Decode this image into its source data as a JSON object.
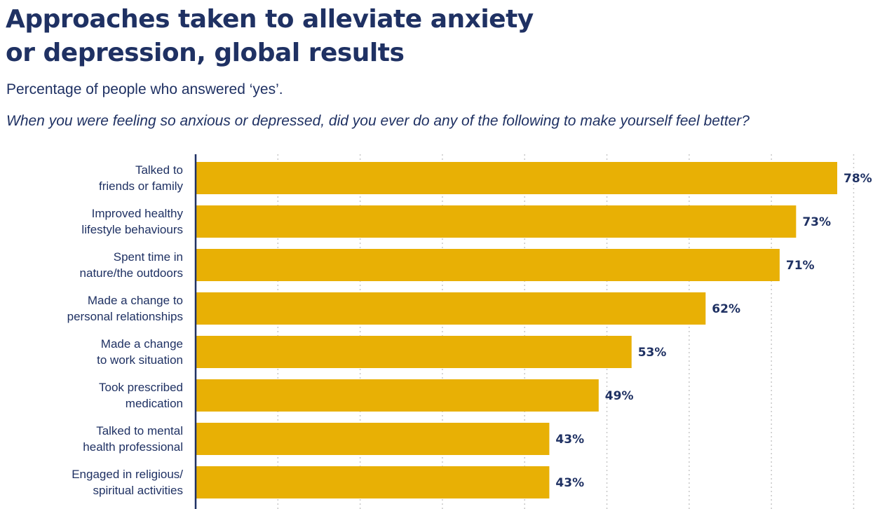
{
  "header": {
    "title_line1": "Approaches taken to alleviate anxiety",
    "title_line2": "or depression, global results",
    "subtitle": "Percentage of people who answered ‘yes’.",
    "question": "When you were feeling so anxious or depressed, did you ever do any of the following to make yourself feel better?"
  },
  "colors": {
    "bar": "#e8b005",
    "text": "#1f3163",
    "axis": "#1f3163",
    "grid": "#c8c8c8"
  },
  "chart_data": {
    "type": "bar",
    "orientation": "horizontal",
    "categories": [
      [
        "Talked to",
        "friends or family"
      ],
      [
        "Improved healthy",
        "lifestyle behaviours"
      ],
      [
        "Spent time in",
        "nature/the outdoors"
      ],
      [
        "Made a change to",
        "personal relationships"
      ],
      [
        "Made a change",
        "to work situation"
      ],
      [
        "Took prescribed",
        "medication"
      ],
      [
        "Talked to mental",
        "health professional"
      ],
      [
        "Engaged in religious/",
        "spiritual activities"
      ]
    ],
    "values": [
      78,
      73,
      71,
      62,
      53,
      49,
      43,
      43
    ],
    "value_labels": [
      "78%",
      "73%",
      "71%",
      "62%",
      "53%",
      "49%",
      "43%",
      "43%"
    ],
    "xlim": [
      0,
      80
    ],
    "grid": true,
    "grid_style": "dotted-vertical"
  }
}
